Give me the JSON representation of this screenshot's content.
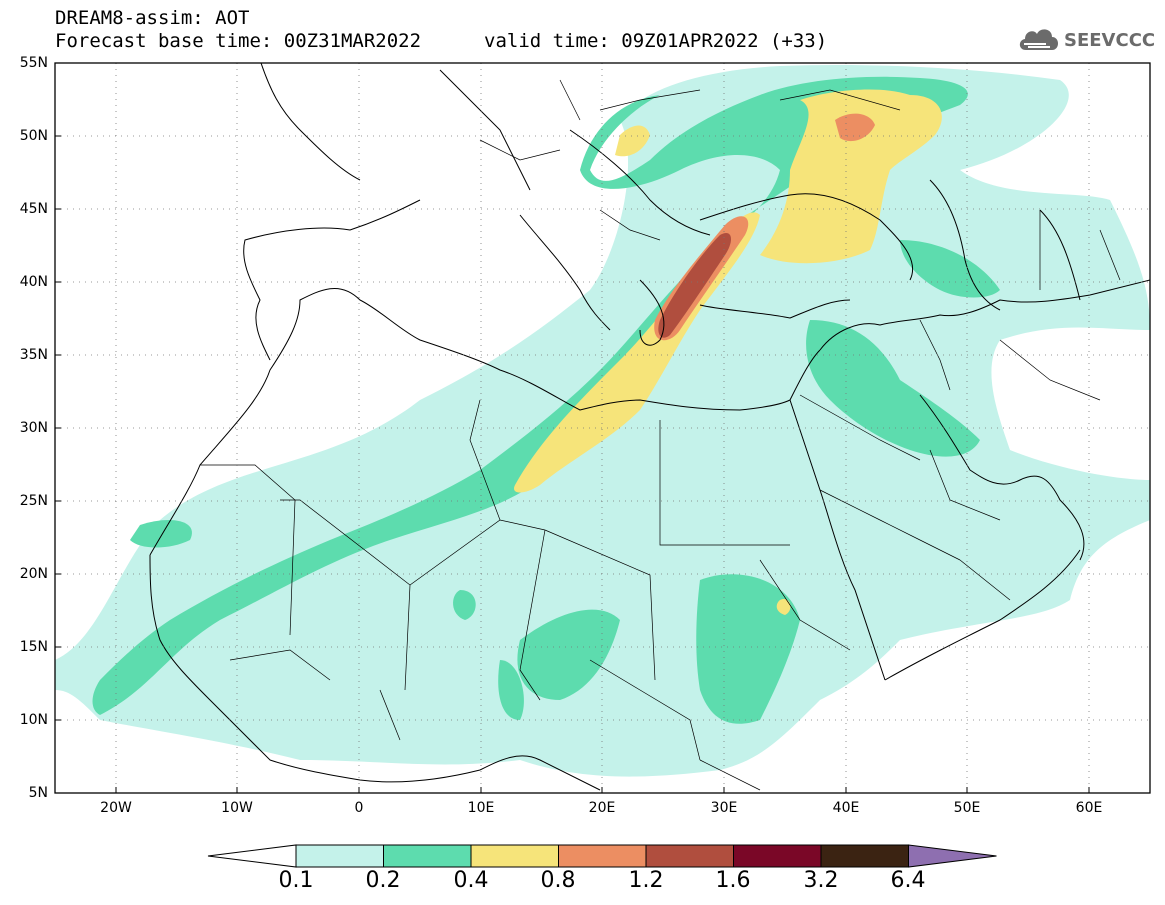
{
  "header": {
    "title": "DREAM8-assim: AOT",
    "base_time": "Forecast base time: 00Z31MAR2022",
    "valid_time": "valid time: 09Z01APR2022 (+33)",
    "logo_text": "SEEVCCC",
    "logo_icon": "cloud-icon"
  },
  "map": {
    "lon_range": [
      -25,
      65
    ],
    "lat_range": [
      5,
      55
    ],
    "lat_labels": [
      "55N",
      "50N",
      "45N",
      "40N",
      "35N",
      "30N",
      "25N",
      "20N",
      "15N",
      "10N",
      "5N"
    ],
    "lon_labels": [
      "20W",
      "10W",
      "0",
      "10E",
      "20E",
      "30E",
      "40E",
      "50E",
      "60E"
    ],
    "grid": "dotted"
  },
  "colorbar": {
    "labels": [
      "0.1",
      "0.2",
      "0.4",
      "0.8",
      "1.2",
      "1.6",
      "3.2",
      "6.4"
    ],
    "colors": [
      "#ffffff",
      "#c4f2ea",
      "#5ddcae",
      "#f6e47a",
      "#ec8e62",
      "#b04e3e",
      "#7a0727",
      "#3b2312",
      "#8e6fb0"
    ]
  }
}
